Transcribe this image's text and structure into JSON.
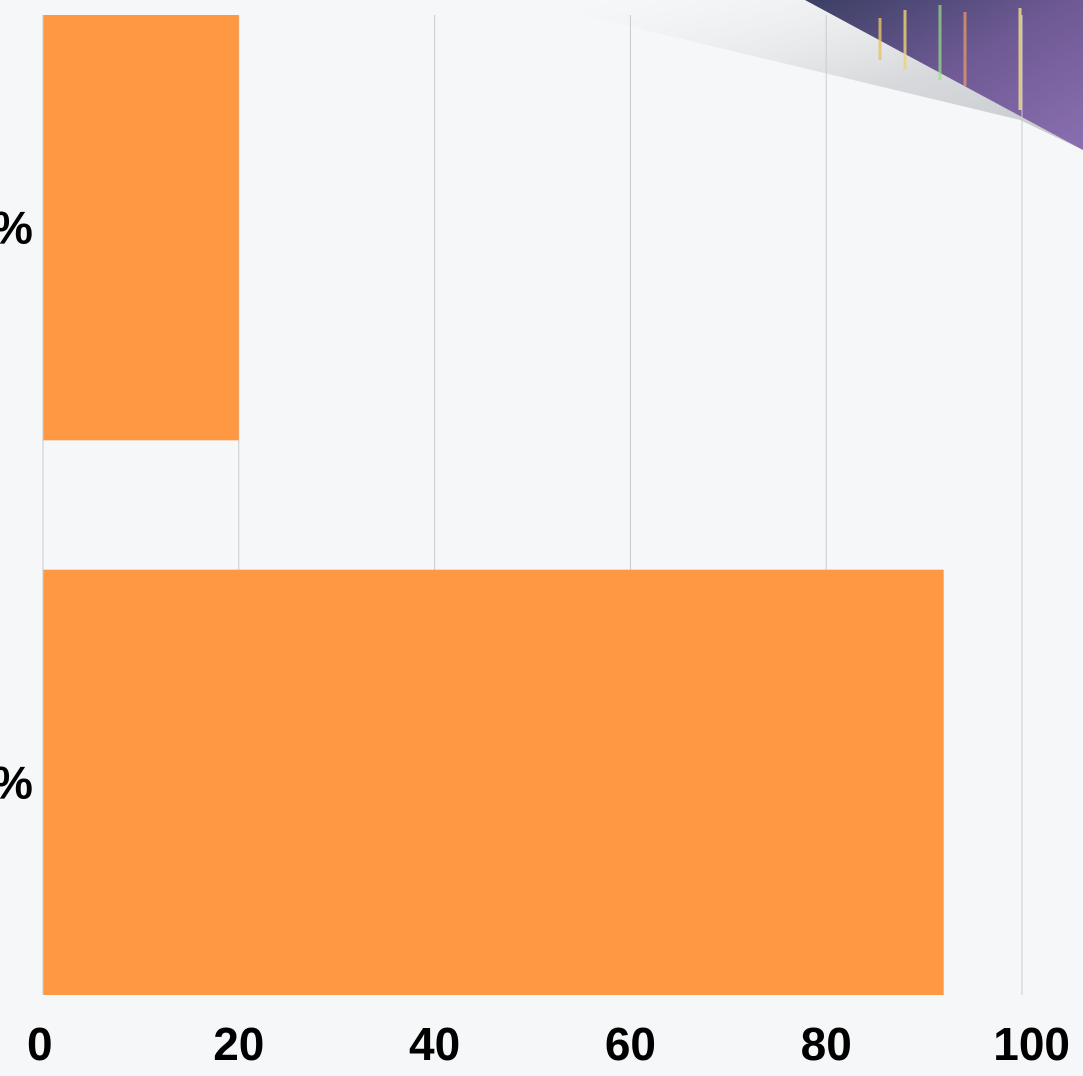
{
  "chart_data": {
    "type": "bar",
    "orientation": "horizontal",
    "categories": [
      "%",
      "%"
    ],
    "values": [
      20,
      92
    ],
    "xlim": [
      0,
      100
    ],
    "xticks": [
      "0",
      "20",
      "40",
      "60",
      "80",
      "100"
    ],
    "grid": true,
    "bar_color": "#ff9843",
    "grid_color": "#c8ccd0",
    "background_color": "#f5f7f8"
  }
}
